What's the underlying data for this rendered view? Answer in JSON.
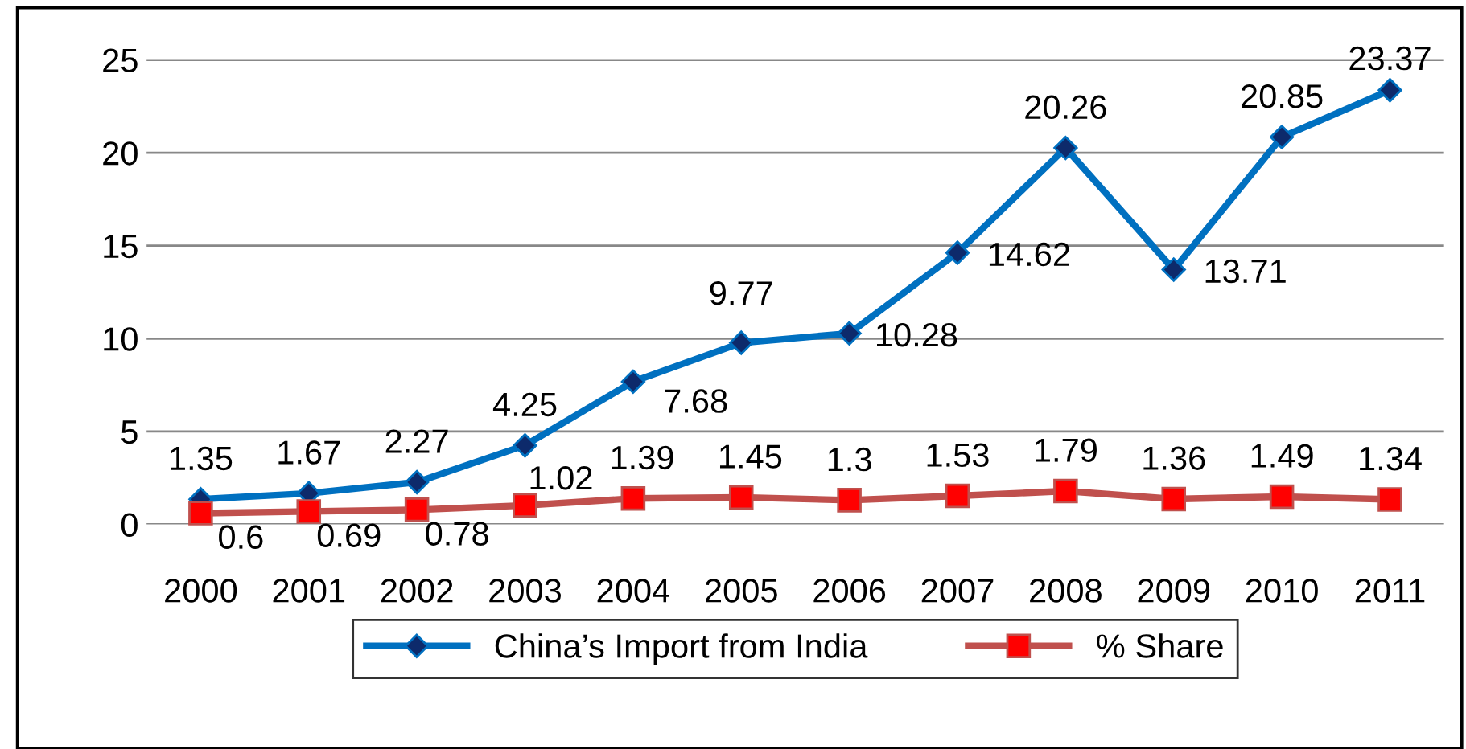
{
  "chart_data": {
    "type": "line",
    "categories": [
      "2000",
      "2001",
      "2002",
      "2003",
      "2004",
      "2005",
      "2006",
      "2007",
      "2008",
      "2009",
      "2010",
      "2011"
    ],
    "series": [
      {
        "name": "China’s Import from India",
        "color": "#0070c0",
        "marker": "diamond",
        "values": [
          1.35,
          1.67,
          2.27,
          4.25,
          7.68,
          9.77,
          10.28,
          14.62,
          20.26,
          13.71,
          20.85,
          23.37
        ]
      },
      {
        "name": "% Share",
        "color": "#c0504d",
        "marker": "square",
        "values": [
          0.6,
          0.69,
          0.78,
          1.02,
          1.39,
          1.45,
          1.3,
          1.53,
          1.79,
          1.36,
          1.49,
          1.34
        ]
      }
    ],
    "ylim": [
      0,
      25
    ],
    "yticks": [
      0,
      5,
      10,
      15,
      20,
      25
    ],
    "grid": "y",
    "legend": "bottom",
    "data_labels": true,
    "line_style": "solid"
  }
}
